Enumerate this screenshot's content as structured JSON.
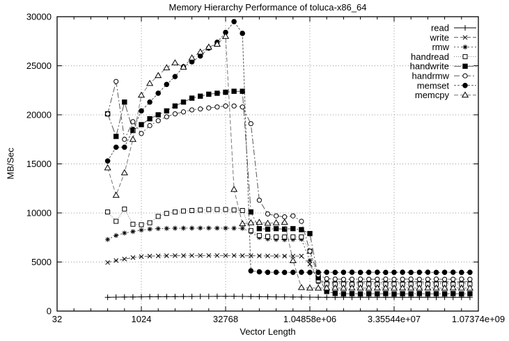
{
  "chart_data": {
    "type": "line",
    "title": "Memory Hierarchy Performance of toluca-x86_64",
    "grid": true,
    "legend_position": "top-right-inside",
    "x_axis": {
      "label": "Vector Length",
      "scale": "log2",
      "min": 32,
      "max": 1073741824,
      "tick_labels": [
        "32",
        "1024",
        "32768",
        "1.04858e+06",
        "3.35544e+07",
        "1.07374e+09"
      ],
      "tick_exponents": [
        5,
        10,
        15,
        20,
        25,
        30
      ],
      "minor_tick_exponent_step": 1
    },
    "y_axis": {
      "label": "MB/Sec",
      "min": 0,
      "max": 30000,
      "tick_step": 5000,
      "tick_labels": [
        "0",
        "5000",
        "10000",
        "15000",
        "20000",
        "25000",
        "30000"
      ]
    },
    "x_exponent_start": 8,
    "x_exponent_step": 0.5,
    "series": [
      {
        "name": "read",
        "marker": "plus",
        "dash": "solid",
        "line_color": "#000000",
        "values": [
          1400,
          1420,
          1430,
          1440,
          1450,
          1460,
          1460,
          1470,
          1470,
          1480,
          1480,
          1490,
          1490,
          1500,
          1500,
          1500,
          1490,
          1480,
          1470,
          1460,
          1450,
          1450,
          1440,
          1430,
          1420,
          1410,
          1400,
          1400,
          1410,
          1400,
          1400,
          1410,
          1400,
          1400,
          1410,
          1400,
          1400,
          1410,
          1400,
          1400,
          1410,
          1400,
          1400,
          1400
        ]
      },
      {
        "name": "write",
        "marker": "cross",
        "dash": "6,3",
        "line_color": "#555555",
        "values": [
          4950,
          5150,
          5300,
          5450,
          5550,
          5600,
          5620,
          5640,
          5650,
          5650,
          5660,
          5660,
          5660,
          5660,
          5660,
          5660,
          5650,
          5640,
          5630,
          5620,
          5610,
          5600,
          5600,
          5600,
          4790,
          3100,
          2980,
          3000,
          3010,
          2990,
          3000,
          3010,
          2990,
          3000,
          3010,
          2990,
          3000,
          3010,
          2990,
          3000,
          3010,
          2990,
          3000,
          3010
        ]
      },
      {
        "name": "rmw",
        "marker": "star",
        "dash": "2,3",
        "line_color": "#555555",
        "values": [
          7300,
          7700,
          7950,
          8100,
          8250,
          8350,
          8400,
          8420,
          8440,
          8450,
          8450,
          8460,
          8460,
          8450,
          8450,
          8440,
          8430,
          8050,
          7500,
          7350,
          7300,
          7280,
          7300,
          7320,
          5150,
          2950,
          2870,
          2880,
          2860,
          2870,
          2880,
          2860,
          2870,
          2880,
          2860,
          2870,
          2880,
          2860,
          2870,
          2880,
          2860,
          2870,
          2880,
          2860
        ]
      },
      {
        "name": "handread",
        "marker": "square-open",
        "dash": "1,2",
        "line_color": "#777777",
        "values": [
          10100,
          9150,
          10400,
          8850,
          8800,
          9000,
          9650,
          9950,
          10100,
          10200,
          10250,
          10300,
          10350,
          10350,
          10350,
          10300,
          10250,
          8200,
          7700,
          7600,
          7550,
          7550,
          7560,
          7560,
          6100,
          3100,
          2760,
          2740,
          2750,
          2730,
          2740,
          2750,
          2730,
          2740,
          2750,
          2730,
          2740,
          2750,
          2730,
          2740,
          2750,
          2730,
          2740,
          2750
        ]
      },
      {
        "name": "handwrite",
        "marker": "square-filled",
        "dash": "10,3,2,3",
        "line_color": "#555555",
        "values": [
          20100,
          17800,
          21300,
          18400,
          19000,
          19600,
          20000,
          20400,
          20900,
          21300,
          21700,
          21900,
          22100,
          22200,
          22300,
          22400,
          22400,
          10100,
          8400,
          8350,
          8400,
          8350,
          8400,
          8300,
          7900,
          3400,
          2000,
          1800,
          1760,
          1780,
          1750,
          1770,
          1760,
          1780,
          1750,
          1770,
          1760,
          1780,
          1750,
          1770,
          1760,
          1780,
          1750,
          1770
        ]
      },
      {
        "name": "handrmw",
        "marker": "circle-open",
        "dash": "8,3,2,3",
        "line_color": "#555555",
        "values": [
          20100,
          23400,
          17500,
          19300,
          18100,
          18900,
          19400,
          19800,
          20100,
          20300,
          20500,
          20600,
          20700,
          20800,
          20900,
          20900,
          20800,
          19100,
          11300,
          9900,
          9700,
          9600,
          9700,
          9150,
          6100,
          3700,
          3300,
          3260,
          3240,
          3250,
          3260,
          3240,
          3250,
          3260,
          3240,
          3250,
          3260,
          3240,
          3250,
          3260,
          3240,
          3250,
          3260,
          3240
        ]
      },
      {
        "name": "memset",
        "marker": "circle-filled",
        "dash": "3,2",
        "line_color": "#555555",
        "values": [
          15300,
          16700,
          16700,
          18500,
          20400,
          21300,
          22200,
          23100,
          23900,
          24900,
          25400,
          26000,
          26800,
          27400,
          28400,
          29500,
          28300,
          4100,
          4000,
          3950,
          3960,
          3940,
          3950,
          3960,
          3940,
          3950,
          3960,
          3940,
          3950,
          3960,
          3940,
          3950,
          3960,
          3940,
          3950,
          3960,
          3940,
          3950,
          3960,
          3940,
          3950,
          3960,
          3940,
          3950
        ]
      },
      {
        "name": "memcpy",
        "marker": "triangle-open",
        "dash": "6,3",
        "line_color": "#777777",
        "values": [
          14600,
          11800,
          14100,
          17500,
          22000,
          23200,
          24000,
          24800,
          25300,
          24860,
          25800,
          26400,
          26900,
          27200,
          28000,
          12400,
          8900,
          9000,
          9050,
          8950,
          9000,
          9050,
          5140,
          2400,
          2350,
          2340,
          2360,
          2350,
          2340,
          2360,
          2350,
          2340,
          2360,
          2350,
          2340,
          2360,
          2350,
          2340,
          2360,
          2350,
          2340,
          2360,
          2350,
          2340
        ]
      }
    ],
    "plot_colors": {
      "marker": "#000000",
      "grid": "#999999",
      "border": "#000000"
    }
  }
}
